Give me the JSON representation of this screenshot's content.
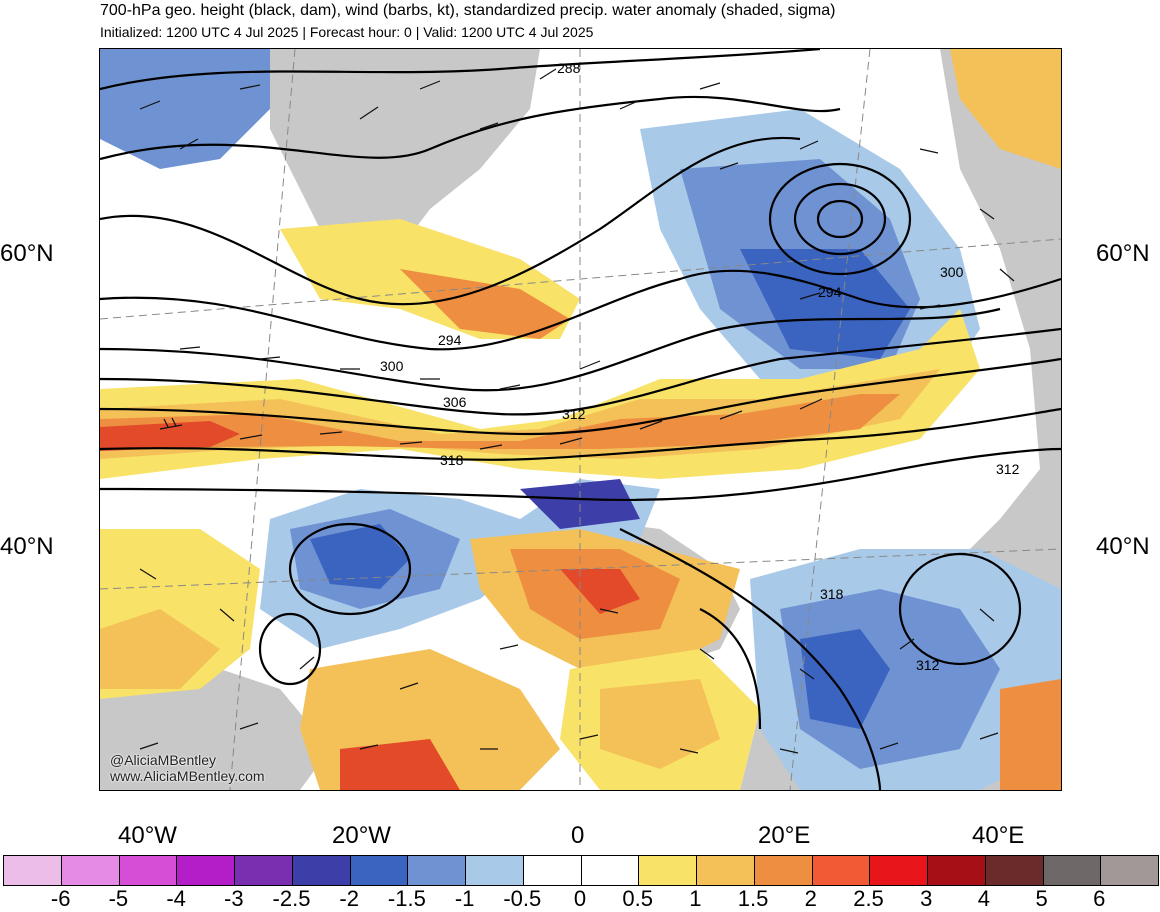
{
  "title": "700-hPa geo. height (black, dam), wind (barbs, kt), standardized precip. water anomaly (shaded, sigma)",
  "subtitle": "Initialized: 1200 UTC 4 Jul 2025 | Forecast hour: 0 | Valid: 1200 UTC 4 Jul 2025",
  "map": {
    "lat_labels": [
      "60°N",
      "40°N"
    ],
    "lon_labels": [
      "40°W",
      "20°W",
      "0",
      "20°E",
      "40°E"
    ],
    "contour_labels": [
      "288",
      "294",
      "294",
      "300",
      "300",
      "306",
      "312",
      "312",
      "318",
      "318",
      "312"
    ],
    "anomaly_colors": {
      "neg_strong": "#3a64c0",
      "neg_mid": "#6f93d2",
      "neg_weak": "#a8c9e8",
      "pos_weak": "#f8e268",
      "pos_mid": "#f4c158",
      "pos_strong": "#ee8e40",
      "pos_very": "#e34a2a",
      "land_gray": "#c8c8c8"
    }
  },
  "watermark": {
    "handle": "@AliciaMBentley",
    "site": "www.AliciaMBentley.com"
  },
  "colorbar": {
    "ticks": [
      "-6",
      "-5",
      "-4",
      "-3",
      "-2.5",
      "-2",
      "-1.5",
      "-1",
      "-0.5",
      "0",
      "0.5",
      "1",
      "1.5",
      "2",
      "2.5",
      "3",
      "4",
      "5",
      "6"
    ],
    "colors": [
      "#ecbde8",
      "#e58ae5",
      "#d64ed6",
      "#b31ec8",
      "#7a2fb0",
      "#3e3ea8",
      "#3a64c0",
      "#6f93d2",
      "#a8c9e8",
      "#ffffff",
      "#ffffff",
      "#f8e268",
      "#f4c158",
      "#ee8e40",
      "#f25a36",
      "#e8161a",
      "#a50f15",
      "#6b2b2b",
      "#6f6868",
      "#a39898"
    ]
  }
}
